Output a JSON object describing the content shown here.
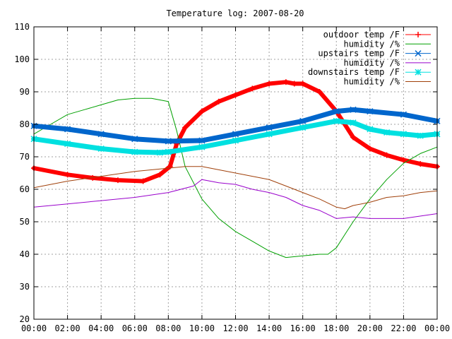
{
  "chart_data": {
    "type": "line",
    "title": "Temperature log: 2007-08-20",
    "xlabel": "",
    "ylabel": "",
    "x_ticks": [
      "00:00",
      "02:00",
      "04:00",
      "06:00",
      "08:00",
      "10:00",
      "12:00",
      "14:00",
      "16:00",
      "18:00",
      "20:00",
      "22:00",
      "00:00"
    ],
    "xlim": [
      0,
      24
    ],
    "ylim": [
      20,
      110
    ],
    "y_ticks": [
      20,
      30,
      40,
      50,
      60,
      70,
      80,
      90,
      100,
      110
    ],
    "grid": true,
    "legend_position": "top-right",
    "series": [
      {
        "name": "outdoor temp /F",
        "color": "#ff0000",
        "marker": "plus",
        "x": [
          0,
          2,
          3.5,
          5,
          6.5,
          7.5,
          8.1,
          8.5,
          9,
          10,
          11,
          12,
          13,
          14,
          15,
          15.5,
          16,
          17,
          18,
          19,
          20,
          21,
          22,
          23,
          24
        ],
        "y": [
          66.5,
          64.5,
          63.5,
          62.8,
          62.5,
          64.5,
          67,
          74,
          79,
          84,
          87,
          89,
          91,
          92.5,
          93,
          92.5,
          92.5,
          90,
          84,
          76,
          72.5,
          70.5,
          69,
          67.8,
          67
        ]
      },
      {
        "name": "humidity /%",
        "color": "#00a000",
        "marker": "none",
        "x": [
          0,
          1,
          2,
          3,
          4,
          5,
          6,
          7,
          8,
          8.5,
          9,
          10,
          11,
          12,
          13,
          14,
          15,
          16,
          17,
          17.5,
          18,
          18.5,
          19,
          20,
          21,
          22,
          23,
          24
        ],
        "y": [
          77,
          80,
          83,
          84.5,
          86,
          87.5,
          88,
          88,
          87,
          78,
          67,
          57,
          51,
          47,
          44,
          41,
          39,
          39.5,
          40,
          40,
          42,
          46,
          50,
          57,
          63,
          68,
          71,
          73
        ]
      },
      {
        "name": "upstairs temp /F",
        "color": "#0066cc",
        "marker": "x",
        "x": [
          0,
          2,
          4,
          6,
          8,
          10,
          12,
          14,
          16,
          18,
          19,
          20,
          22,
          24
        ],
        "y": [
          79.5,
          78.5,
          77,
          75.5,
          74.8,
          75,
          77,
          79,
          81,
          84,
          84.5,
          84,
          83,
          81
        ]
      },
      {
        "name": "humidity /%",
        "color": "#9900cc",
        "marker": "none",
        "x": [
          0,
          2,
          4,
          6,
          8,
          9.5,
          10,
          11,
          12,
          13,
          14,
          15,
          16,
          17,
          18,
          19,
          20,
          22,
          24
        ],
        "y": [
          54.5,
          55.5,
          56.5,
          57.5,
          59,
          61,
          63,
          62,
          61.5,
          60,
          59,
          57.5,
          55,
          53.5,
          51,
          51.5,
          51,
          51,
          52.5
        ]
      },
      {
        "name": "downstairs temp /F",
        "color": "#00e0e0",
        "marker": "star",
        "x": [
          0,
          2,
          4,
          6,
          7.5,
          8,
          10,
          12,
          14,
          16,
          18,
          19,
          20,
          21,
          22,
          23,
          24
        ],
        "y": [
          75.5,
          74,
          72.5,
          71.5,
          71.3,
          71.5,
          73,
          75,
          77,
          79,
          81,
          80.5,
          78.5,
          77.5,
          77,
          76.5,
          77
        ]
      },
      {
        "name": "humidity /%",
        "color": "#a0400a",
        "marker": "none",
        "x": [
          0,
          2,
          4,
          6,
          8,
          9,
          10,
          11,
          12,
          13,
          14,
          15,
          16,
          17,
          18,
          18.5,
          19,
          20,
          21,
          22,
          23,
          24
        ],
        "y": [
          60.5,
          62.5,
          64,
          65.5,
          66.5,
          67,
          67,
          66,
          65,
          64,
          63,
          61,
          59,
          57,
          54.5,
          54,
          55,
          56,
          57.5,
          58,
          59,
          59.5
        ]
      }
    ]
  }
}
